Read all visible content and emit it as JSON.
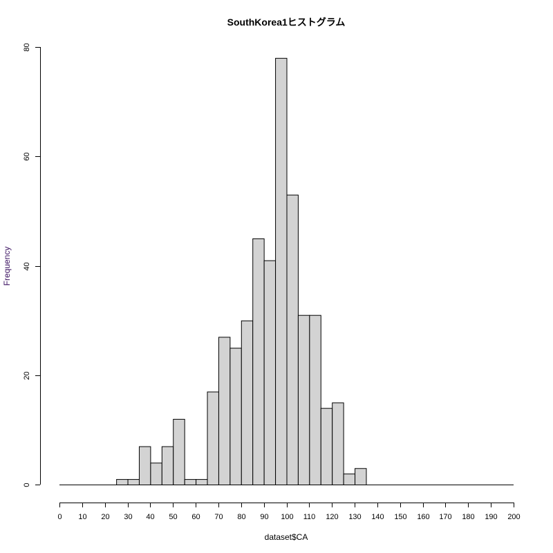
{
  "chart_data": {
    "type": "bar",
    "title": "SouthKorea1ヒストグラム",
    "xlabel": "dataset$CA",
    "ylabel": "Frequency",
    "bin_width": 5,
    "xlim": [
      0,
      200
    ],
    "ylim": [
      0,
      80
    ],
    "bins": [
      {
        "start": 25,
        "end": 30,
        "count": 1
      },
      {
        "start": 30,
        "end": 35,
        "count": 1
      },
      {
        "start": 35,
        "end": 40,
        "count": 7
      },
      {
        "start": 40,
        "end": 45,
        "count": 4
      },
      {
        "start": 45,
        "end": 50,
        "count": 7
      },
      {
        "start": 50,
        "end": 55,
        "count": 12
      },
      {
        "start": 55,
        "end": 60,
        "count": 1
      },
      {
        "start": 60,
        "end": 65,
        "count": 1
      },
      {
        "start": 65,
        "end": 70,
        "count": 17
      },
      {
        "start": 70,
        "end": 75,
        "count": 27
      },
      {
        "start": 75,
        "end": 80,
        "count": 25
      },
      {
        "start": 80,
        "end": 85,
        "count": 30
      },
      {
        "start": 85,
        "end": 90,
        "count": 45
      },
      {
        "start": 90,
        "end": 95,
        "count": 41
      },
      {
        "start": 95,
        "end": 100,
        "count": 78
      },
      {
        "start": 100,
        "end": 105,
        "count": 53
      },
      {
        "start": 105,
        "end": 110,
        "count": 31
      },
      {
        "start": 110,
        "end": 115,
        "count": 31
      },
      {
        "start": 115,
        "end": 120,
        "count": 14
      },
      {
        "start": 120,
        "end": 125,
        "count": 15
      },
      {
        "start": 125,
        "end": 130,
        "count": 2
      },
      {
        "start": 130,
        "end": 135,
        "count": 3
      }
    ],
    "xticks": [
      0,
      10,
      20,
      30,
      40,
      50,
      60,
      70,
      80,
      90,
      100,
      110,
      120,
      130,
      140,
      150,
      160,
      170,
      180,
      190,
      200
    ],
    "yticks": [
      0,
      20,
      40,
      60,
      80
    ],
    "grid": false,
    "colors": {
      "bar_fill": "#d3d3d3",
      "bar_stroke": "#000000",
      "ylabel": "#3a1060"
    }
  }
}
